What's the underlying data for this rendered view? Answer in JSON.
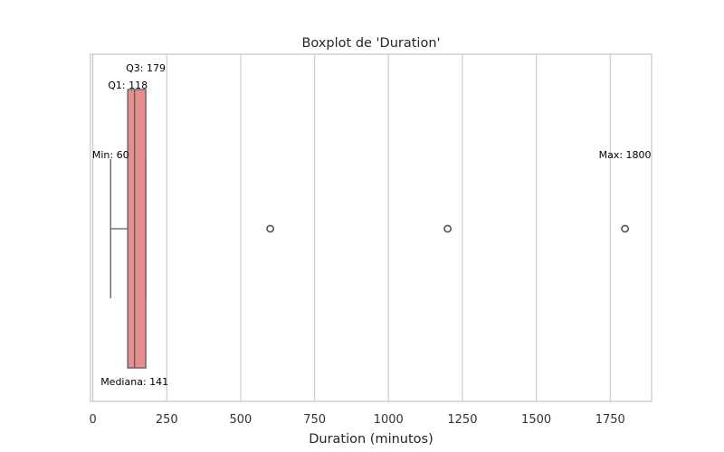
{
  "chart_data": {
    "type": "boxplot",
    "title": "Boxplot de 'Duration'",
    "xlabel": "Duration (minutos)",
    "ylabel": "",
    "xlim": [
      -8,
      1890
    ],
    "xticks": [
      0,
      250,
      500,
      750,
      1000,
      1250,
      1500,
      1750
    ],
    "grid": true,
    "orientation": "horizontal",
    "box": {
      "min": 60,
      "q1": 118,
      "median": 141,
      "q3": 179,
      "max": 1800,
      "whisker_low": 60,
      "whisker_high": 179,
      "outliers": [
        600,
        1200,
        1800
      ],
      "color": "#e88d8d"
    },
    "annotations": [
      {
        "name": "annotation-q3",
        "text": "Q3: 179",
        "value": 179
      },
      {
        "name": "annotation-q1",
        "text": "Q1: 118",
        "value": 118
      },
      {
        "name": "annotation-min",
        "text": "Min: 60",
        "value": 60
      },
      {
        "name": "annotation-max",
        "text": "Max: 1800",
        "value": 1800
      },
      {
        "name": "annotation-median",
        "text": "Mediana: 141",
        "value": 141
      }
    ]
  }
}
